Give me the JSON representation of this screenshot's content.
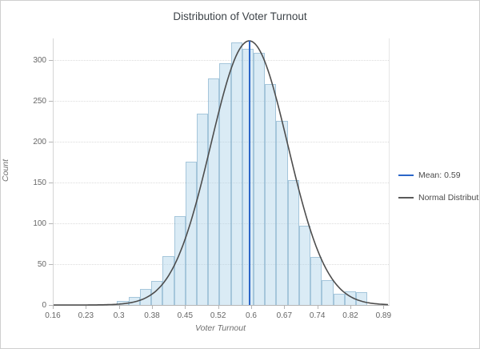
{
  "title": "Distribution of Voter Turnout",
  "axes": {
    "x": {
      "label": "Voter Turnout",
      "ticks": [
        {
          "label": "0.16",
          "value": 0.16
        },
        {
          "label": "0.23",
          "value": 0.233
        },
        {
          "label": "0.3",
          "value": 0.306
        },
        {
          "label": "0.38",
          "value": 0.379
        },
        {
          "label": "0.45",
          "value": 0.452
        },
        {
          "label": "0.52",
          "value": 0.525
        },
        {
          "label": "0.6",
          "value": 0.598
        },
        {
          "label": "0.67",
          "value": 0.671
        },
        {
          "label": "0.74",
          "value": 0.744
        },
        {
          "label": "0.82",
          "value": 0.817
        },
        {
          "label": "0.89",
          "value": 0.89
        }
      ]
    },
    "y": {
      "label": "Count",
      "ticks": [
        0,
        50,
        100,
        150,
        200,
        250,
        300
      ]
    }
  },
  "legend": {
    "items": [
      {
        "label": "Mean: 0.59",
        "color": "#2b66c8"
      },
      {
        "label": "Normal Distribution",
        "color": "#5a5a5a"
      }
    ]
  },
  "chart_data": {
    "type": "histogram",
    "title": "Distribution of Voter Turnout",
    "xlabel": "Voter Turnout",
    "ylabel": "Count",
    "xlim": [
      0.16,
      0.9
    ],
    "ylim": [
      0,
      326
    ],
    "grid": true,
    "legend_position": "right",
    "bins": {
      "start": 0.3004,
      "width": 0.0251,
      "counts": [
        5,
        10,
        20,
        29,
        60,
        109,
        175,
        234,
        277,
        296,
        321,
        313,
        308,
        270,
        225,
        153,
        97,
        59,
        30,
        14,
        17,
        16
      ]
    },
    "overlays": {
      "mean_line": {
        "x": 0.592,
        "label": "Mean: 0.59"
      },
      "normal_curve": {
        "mean": 0.592,
        "sigma": 0.085,
        "peak": 323,
        "label": "Normal Distribution"
      }
    }
  },
  "colors": {
    "bar_fill": "rgba(173,210,232,0.45)",
    "bar_border": "rgba(137,178,205,0.65)",
    "mean_line": "#2b66c8",
    "curve": "#4d4d4d",
    "grid": "#dcdcdc",
    "axis": "#b5b5b5",
    "tick_text": "#666666"
  }
}
